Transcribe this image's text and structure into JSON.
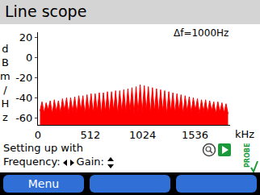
{
  "header": {
    "title": "Line scope"
  },
  "chart_data": {
    "type": "area",
    "annotations": [
      "Δf=1000Hz"
    ],
    "x_label": "kHz",
    "y_label": "dBm/Hz",
    "x": [
      20,
      40,
      60,
      80,
      100,
      120,
      140,
      160,
      180,
      200,
      220,
      240,
      260,
      280,
      300,
      320,
      340,
      360,
      380,
      400,
      420,
      440,
      460,
      480,
      500,
      520,
      540,
      560,
      580,
      600,
      620,
      640,
      660,
      680,
      700,
      720,
      740,
      760,
      780,
      800,
      820,
      840,
      860,
      880,
      900,
      920,
      940,
      960,
      980,
      1000,
      1020,
      1040,
      1060,
      1080,
      1100,
      1120,
      1140,
      1160,
      1180,
      1200,
      1220,
      1240,
      1260,
      1280,
      1300,
      1320,
      1340,
      1360,
      1380,
      1400,
      1420,
      1440,
      1460,
      1480,
      1500,
      1520,
      1540,
      1560,
      1580,
      1600,
      1620,
      1640,
      1660,
      1680,
      1700,
      1720,
      1740,
      1760,
      1780,
      1800,
      1820,
      1840,
      1860
    ],
    "values": [
      -53,
      -44,
      -55,
      -45,
      -52,
      -43,
      -56,
      -42,
      -54,
      -43,
      -55,
      -41,
      -53,
      -40,
      -56,
      -40,
      -54,
      -39,
      -55,
      -38,
      -53,
      -38,
      -56,
      -37,
      -54,
      -36,
      -55,
      -36,
      -53,
      -35,
      -56,
      -35,
      -54,
      -34,
      -55,
      -34,
      -53,
      -33,
      -56,
      -33,
      -54,
      -32,
      -55,
      -31,
      -53,
      -30,
      -56,
      -29,
      -54,
      -27,
      -55,
      -28,
      -53,
      -29,
      -56,
      -30,
      -54,
      -31,
      -55,
      -32,
      -53,
      -33,
      -56,
      -34,
      -54,
      -35,
      -55,
      -36,
      -53,
      -37,
      -56,
      -38,
      -54,
      -39,
      -55,
      -40,
      -53,
      -41,
      -56,
      -42,
      -54,
      -42,
      -55,
      -43,
      -53,
      -44,
      -56,
      -44,
      -54,
      -45,
      -55,
      -46,
      -56
    ],
    "color": "#ff0000",
    "xlim": [
      0,
      1880
    ],
    "ylim": [
      -67,
      25
    ],
    "xticks": [
      0,
      512,
      1024,
      1536
    ],
    "yticks": [
      20,
      0,
      -20,
      -40,
      -60
    ],
    "grid": false
  },
  "status": {
    "line1": "Setting up with",
    "frequency_label": "Frequency:",
    "gain_label": "Gain:",
    "probe": "PROBE"
  },
  "buttons": [
    "Menu"
  ]
}
